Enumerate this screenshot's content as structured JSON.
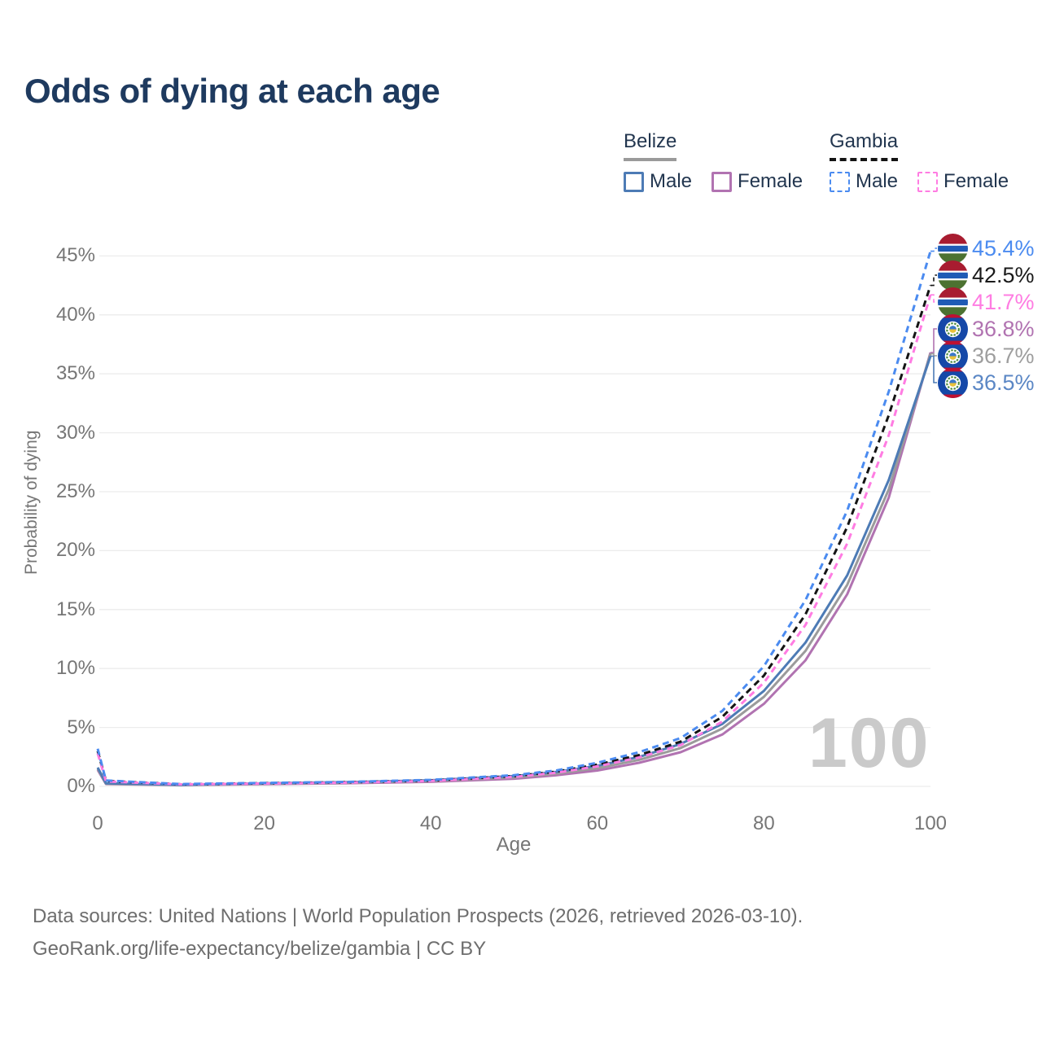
{
  "title": "Odds of dying at each age",
  "watermark": "100",
  "footer": {
    "line1": "Data sources: United Nations | World Population Prospects (2026, retrieved 2026-03-10).",
    "line2": "GeoRank.org/life-expectancy/belize/gambia | CC BY"
  },
  "colors": {
    "title_text": "#1e3a5f",
    "legend_text": "#22364f",
    "axis_text": "#767676",
    "gridline": "#ececec",
    "watermark": "#cacaca",
    "belize_male": "#4d7bb5",
    "belize_female": "#b173b1",
    "belize_all": "#9b9b9b",
    "gambia_male": "#4b8bf0",
    "gambia_female": "#ff7ce2",
    "gambia_all": "#141414"
  },
  "legend": {
    "groups": [
      {
        "label": "Belize",
        "line_style": "solid",
        "underline_color": "#9a9a9a",
        "items": [
          {
            "label": "Male",
            "color": "#4d7bb5"
          },
          {
            "label": "Female",
            "color": "#b173b1"
          }
        ]
      },
      {
        "label": "Gambia",
        "line_style": "dashed",
        "underline_color": "#141414",
        "items": [
          {
            "label": "Male",
            "color": "#4b8bf0"
          },
          {
            "label": "Female",
            "color": "#ff7ce2"
          }
        ]
      }
    ]
  },
  "chart_data": {
    "type": "line",
    "title": "Odds of dying at each age",
    "xlabel": "Age",
    "ylabel": "Probability of dying",
    "xlim": [
      0,
      100
    ],
    "ylim_pct": [
      0,
      45.4
    ],
    "grid": "horizontal",
    "legend_position": "top-right",
    "x_ticks": [
      0,
      20,
      40,
      60,
      80,
      100
    ],
    "y_tick_values": [
      0,
      5,
      10,
      15,
      20,
      25,
      30,
      35,
      40,
      45
    ],
    "y_tick_labels": [
      "0%",
      "5%",
      "10%",
      "15%",
      "20%",
      "25%",
      "30%",
      "35%",
      "40%",
      "45%"
    ],
    "x": [
      0,
      1,
      10,
      20,
      30,
      40,
      50,
      55,
      60,
      65,
      70,
      75,
      80,
      85,
      90,
      95,
      100
    ],
    "unit": "percent",
    "series": [
      {
        "key": "belize_female",
        "name": "Belize Female",
        "country": "Belize",
        "sex": "Female",
        "color": "#b173b1",
        "dash": "solid",
        "values": [
          1.4,
          0.2,
          0.11,
          0.19,
          0.27,
          0.39,
          0.65,
          0.94,
          1.35,
          2.0,
          2.9,
          4.4,
          7.0,
          10.7,
          16.3,
          24.5,
          36.8
        ]
      },
      {
        "key": "belize_all",
        "name": "Belize (both sexes)",
        "country": "Belize",
        "sex": "All",
        "color": "#9b9b9b",
        "dash": "solid",
        "values": [
          1.5,
          0.23,
          0.12,
          0.22,
          0.31,
          0.45,
          0.76,
          1.08,
          1.55,
          2.25,
          3.25,
          4.9,
          7.6,
          11.5,
          17.1,
          25.2,
          36.7
        ]
      },
      {
        "key": "belize_male",
        "name": "Belize Male",
        "country": "Belize",
        "sex": "Male",
        "color": "#4d7bb5",
        "dash": "solid",
        "values": [
          1.6,
          0.26,
          0.13,
          0.26,
          0.36,
          0.52,
          0.88,
          1.22,
          1.75,
          2.5,
          3.6,
          5.3,
          8.1,
          12.2,
          17.9,
          26.0,
          36.5
        ]
      },
      {
        "key": "gambia_all",
        "name": "Gambia (both sexes)",
        "country": "Gambia",
        "sex": "All",
        "color": "#141414",
        "dash": "dashed",
        "values": [
          3.0,
          0.46,
          0.18,
          0.27,
          0.35,
          0.5,
          0.87,
          1.25,
          1.85,
          2.65,
          3.8,
          5.9,
          9.4,
          14.6,
          22.0,
          31.5,
          42.5
        ]
      },
      {
        "key": "gambia_female",
        "name": "Gambia Female",
        "country": "Gambia",
        "sex": "Female",
        "color": "#ff7ce2",
        "dash": "dashed",
        "values": [
          2.8,
          0.42,
          0.17,
          0.24,
          0.32,
          0.46,
          0.8,
          1.15,
          1.7,
          2.45,
          3.5,
          5.5,
          8.8,
          13.7,
          20.6,
          29.8,
          41.7
        ]
      },
      {
        "key": "gambia_male",
        "name": "Gambia Male",
        "country": "Gambia",
        "sex": "Male",
        "color": "#4b8bf0",
        "dash": "dashed",
        "values": [
          3.2,
          0.5,
          0.2,
          0.3,
          0.38,
          0.55,
          0.95,
          1.35,
          2.0,
          2.9,
          4.1,
          6.4,
          10.2,
          15.8,
          23.4,
          33.5,
          45.4
        ]
      }
    ],
    "end_labels": [
      {
        "value": "45.4%",
        "series": "gambia_male",
        "label_for": "Gambia Male",
        "color": "#4b8bf0",
        "flag": "gambia",
        "end_pct": 45.4
      },
      {
        "value": "42.5%",
        "series": "gambia_all",
        "label_for": "Gambia (both sexes)",
        "color": "#1a1a1a",
        "flag": "gambia",
        "end_pct": 42.5
      },
      {
        "value": "41.7%",
        "series": "gambia_female",
        "label_for": "Gambia Female",
        "color": "#ff7ce2",
        "flag": "gambia",
        "end_pct": 41.7
      },
      {
        "value": "36.8%",
        "series": "belize_female",
        "label_for": "Belize Female",
        "color": "#b173b1",
        "flag": "belize",
        "end_pct": 36.8
      },
      {
        "value": "36.7%",
        "series": "belize_all",
        "label_for": "Belize (both sexes)",
        "color": "#9e9e9e",
        "flag": "belize",
        "end_pct": 36.7
      },
      {
        "value": "36.5%",
        "series": "belize_male",
        "label_for": "Belize Male",
        "color": "#5b87c5",
        "flag": "belize",
        "end_pct": 36.5
      }
    ]
  }
}
